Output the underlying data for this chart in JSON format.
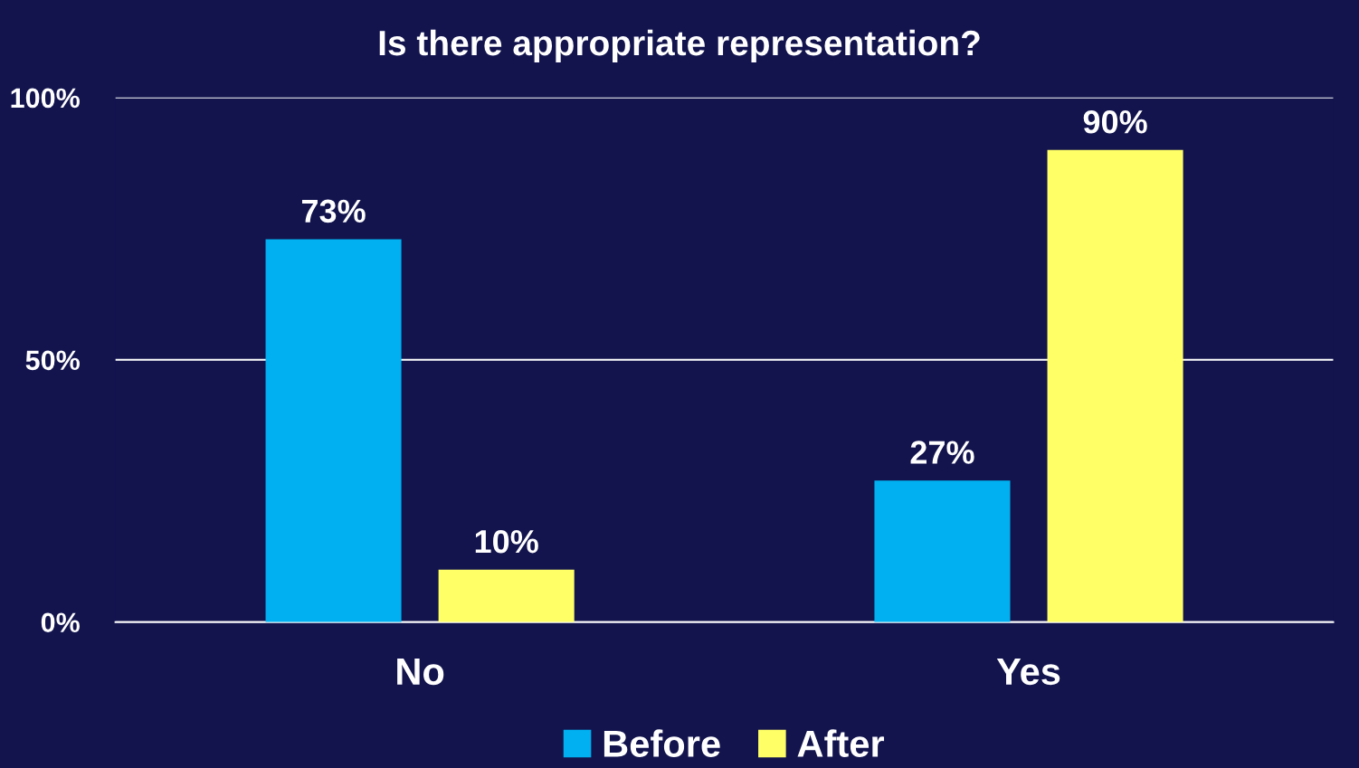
{
  "chart_data": {
    "type": "bar",
    "title": "Is there appropriate representation?",
    "categories": [
      "No",
      "Yes"
    ],
    "series": [
      {
        "name": "Before",
        "color": "#00b0f0",
        "values": [
          73,
          27
        ],
        "value_labels": [
          "73%",
          "27%"
        ]
      },
      {
        "name": "After",
        "color": "#ffff66",
        "values": [
          10,
          90
        ],
        "value_labels": [
          "10%",
          "90%"
        ]
      }
    ],
    "ylim": [
      0,
      100
    ],
    "yticks": [
      {
        "value": 0,
        "label": "0%"
      },
      {
        "value": 50,
        "label": "50%"
      },
      {
        "value": 100,
        "label": "100%"
      }
    ],
    "grid": "y",
    "legend": "bottom"
  }
}
